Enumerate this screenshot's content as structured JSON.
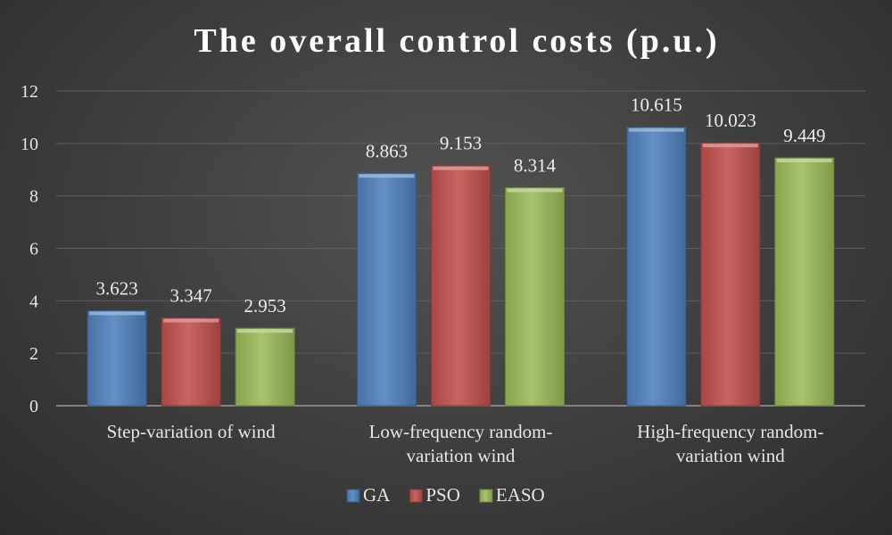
{
  "chart_data": {
    "type": "bar",
    "title": "The overall control costs (p.u.)",
    "categories": [
      [
        "Step-variation of wind"
      ],
      [
        "Low-frequency random-",
        "variation wind"
      ],
      [
        "High-frequency random-",
        "variation wind"
      ]
    ],
    "series": [
      {
        "name": "GA",
        "values": [
          3.623,
          8.863,
          10.615
        ],
        "labels": [
          "3.623",
          "8.863",
          "10.615"
        ],
        "color": "#4f81bd"
      },
      {
        "name": "PSO",
        "values": [
          3.347,
          9.153,
          10.023
        ],
        "labels": [
          "3.347",
          "9.153",
          "10.023"
        ],
        "color": "#c0504d"
      },
      {
        "name": "EASO",
        "values": [
          2.953,
          8.314,
          9.449
        ],
        "labels": [
          "2.953",
          "8.314",
          "9.449"
        ],
        "color": "#9bbb59"
      }
    ],
    "ylim": [
      0,
      12
    ],
    "yticks": [
      0,
      2,
      4,
      6,
      8,
      10,
      12
    ],
    "xlabel": "",
    "ylabel": "",
    "grid": true,
    "legend_position": "bottom"
  }
}
